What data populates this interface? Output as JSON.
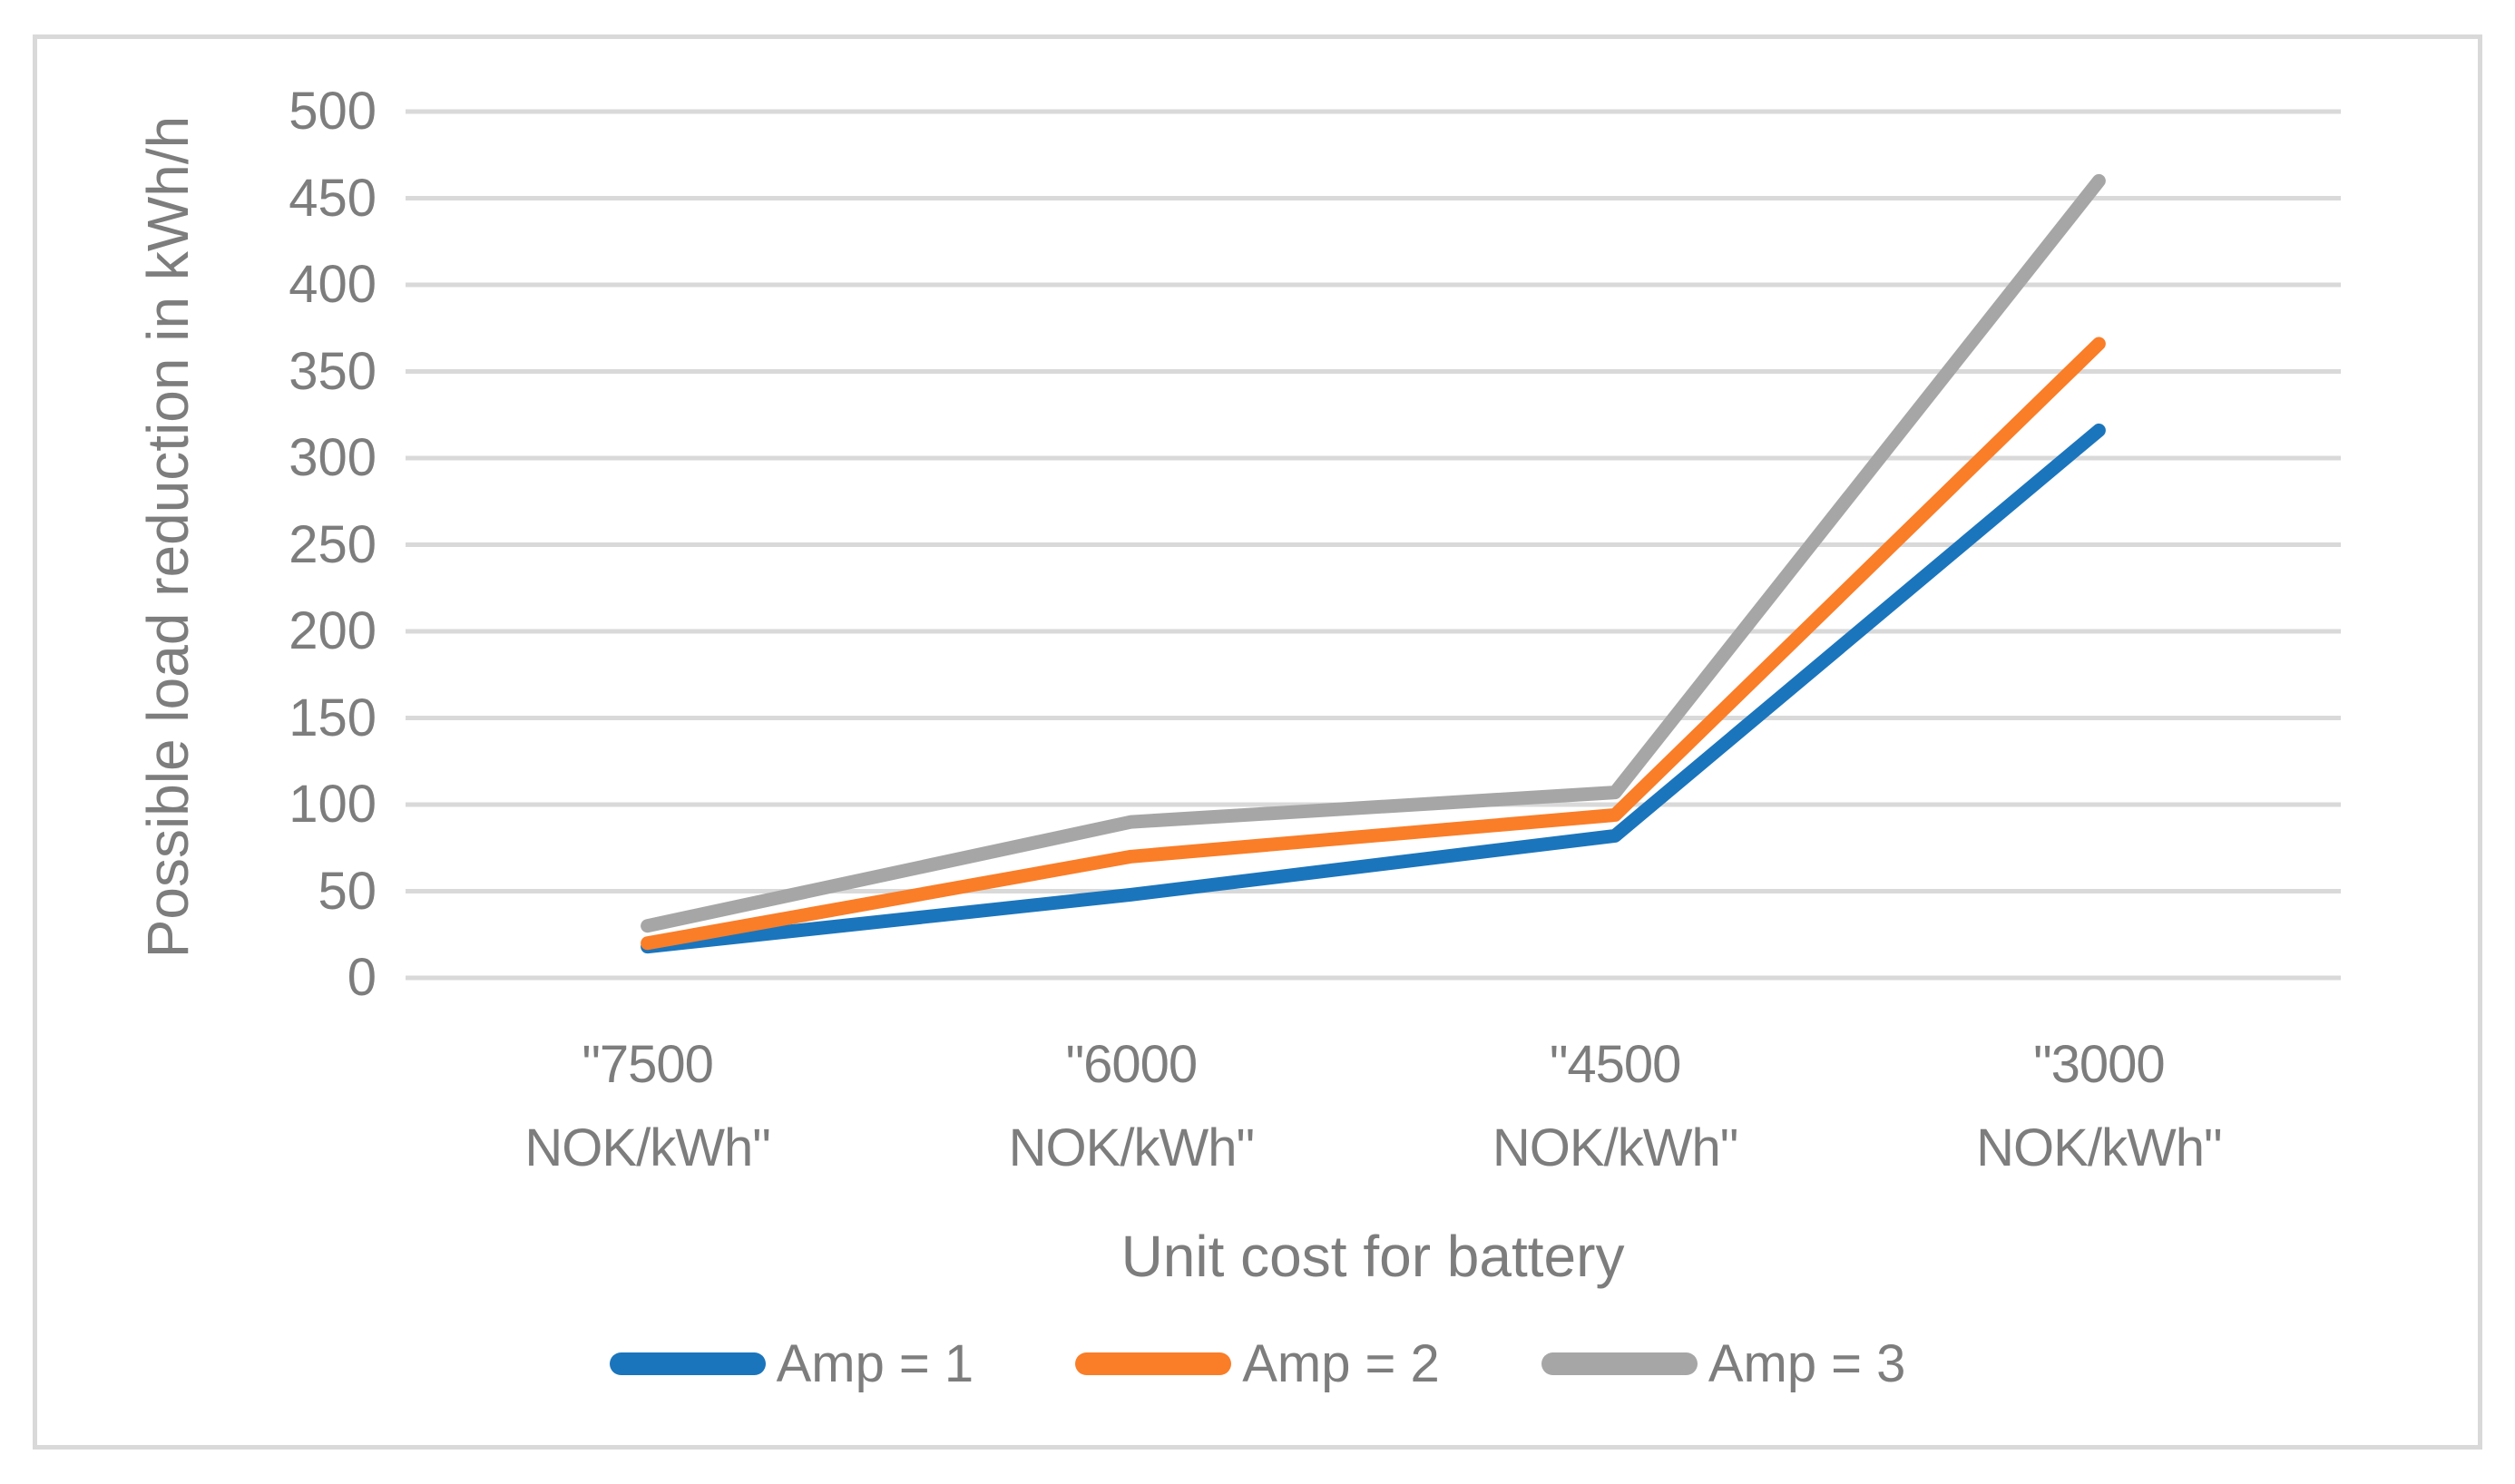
{
  "figure": {
    "background": "#FFFFFF",
    "border_color": "#D9D9D9",
    "text_color": "#7D7D7D",
    "gridline_color": "#D9D9D9"
  },
  "chart_data": {
    "type": "line",
    "title": "",
    "xlabel": "Unit cost for battery",
    "ylabel": "Possible load reduction in kWh/h",
    "categories": [
      "\"7500 NOK/kWh\"",
      "\"6000 NOK/kWh\"",
      "\"4500 NOK/kWh\"",
      "\"3000 NOK/kWh\""
    ],
    "category_lines": [
      [
        "\"7500",
        "NOK/kWh\""
      ],
      [
        "\"6000",
        "NOK/kWh\""
      ],
      [
        "\"4500",
        "NOK/kWh\""
      ],
      [
        "\"3000",
        "NOK/kWh\""
      ]
    ],
    "series": [
      {
        "name": "Amp = 1",
        "color": "#1B75BC",
        "values": [
          18,
          48,
          82,
          316
        ]
      },
      {
        "name": "Amp = 2",
        "color": "#FA7D28",
        "values": [
          20,
          70,
          94,
          366
        ]
      },
      {
        "name": "Amp = 3",
        "color": "#A6A6A6",
        "values": [
          30,
          90,
          107,
          460
        ]
      }
    ],
    "ylim": [
      0,
      500
    ],
    "ytick_step": 50,
    "grid": true,
    "legend_position": "bottom"
  }
}
